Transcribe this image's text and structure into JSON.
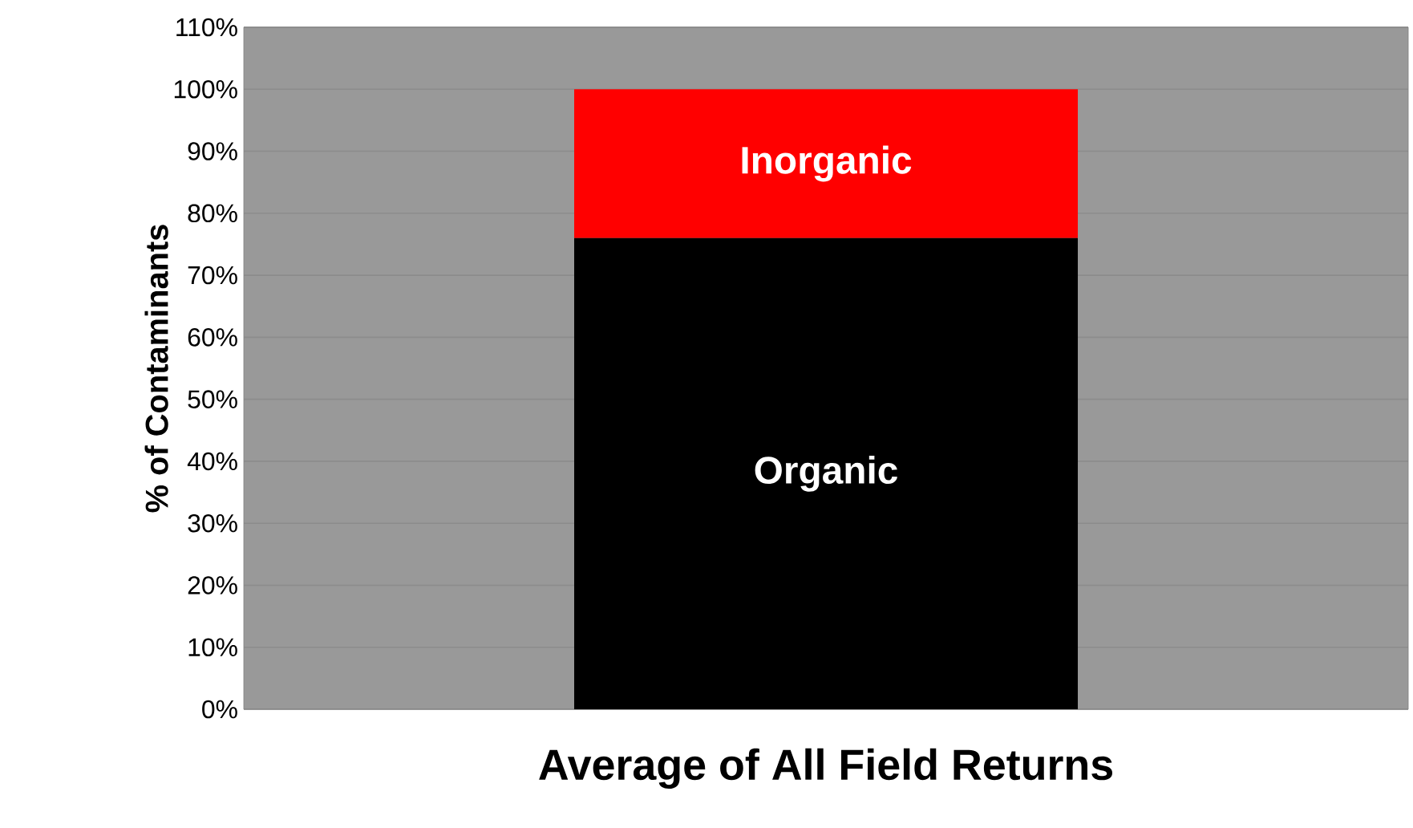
{
  "chart_data": {
    "type": "bar",
    "stacked": true,
    "xlabel": "Average of All Field Returns",
    "ylabel": "% of Contaminants",
    "categories": [
      null
    ],
    "series": [
      {
        "name": "Organic",
        "color": "#000000",
        "values": [
          76
        ]
      },
      {
        "name": "Inorganic",
        "color": "#ff0000",
        "values": [
          24
        ]
      }
    ],
    "ylim": [
      0,
      110
    ],
    "yticks": [
      {
        "value": 0,
        "label": "0%"
      },
      {
        "value": 10,
        "label": "10%"
      },
      {
        "value": 20,
        "label": "20%"
      },
      {
        "value": 30,
        "label": "30%"
      },
      {
        "value": 40,
        "label": "40%"
      },
      {
        "value": 50,
        "label": "50%"
      },
      {
        "value": 60,
        "label": "60%"
      },
      {
        "value": 70,
        "label": "70%"
      },
      {
        "value": 80,
        "label": "80%"
      },
      {
        "value": 90,
        "label": "90%"
      },
      {
        "value": 100,
        "label": "100%"
      },
      {
        "value": 110,
        "label": "110%"
      }
    ],
    "grid": "y"
  }
}
